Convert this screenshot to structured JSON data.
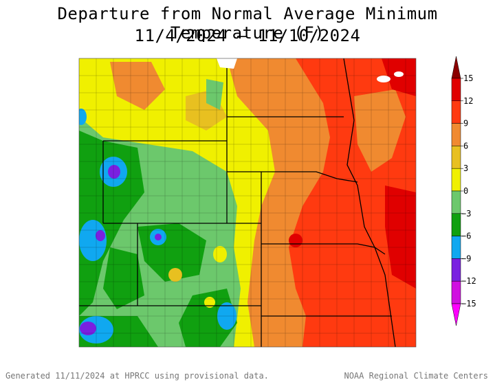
{
  "title": {
    "line1": "Departure from Normal Average Minimum Temperature (F)",
    "line2": "11/4/2024 – 11/10/2024"
  },
  "colorbar": {
    "levels": [
      {
        "value": 15,
        "label": "15",
        "color": "#8b0000"
      },
      {
        "value": 12,
        "label": "12",
        "color": "#e00000"
      },
      {
        "value": 9,
        "label": "9",
        "color": "#ff3a10"
      },
      {
        "value": 6,
        "label": "6",
        "color": "#f08a30"
      },
      {
        "value": 3,
        "label": "3",
        "color": "#e8c020"
      },
      {
        "value": 0,
        "label": "0",
        "color": "#f0f000"
      },
      {
        "value": -3,
        "label": "−3",
        "color": "#6cc86c"
      },
      {
        "value": -6,
        "label": "−6",
        "color": "#10a010"
      },
      {
        "value": -9,
        "label": "−9",
        "color": "#10a8f0"
      },
      {
        "value": -12,
        "label": "−12",
        "color": "#7a20e0"
      },
      {
        "value": -15,
        "label": "−15",
        "color": "#d010e0"
      }
    ],
    "bottom_color": "#ff00ff"
  },
  "footer": {
    "left": "Generated 11/11/2024 at HPRCC using provisional data.",
    "right": "NOAA Regional Climate Centers"
  }
}
